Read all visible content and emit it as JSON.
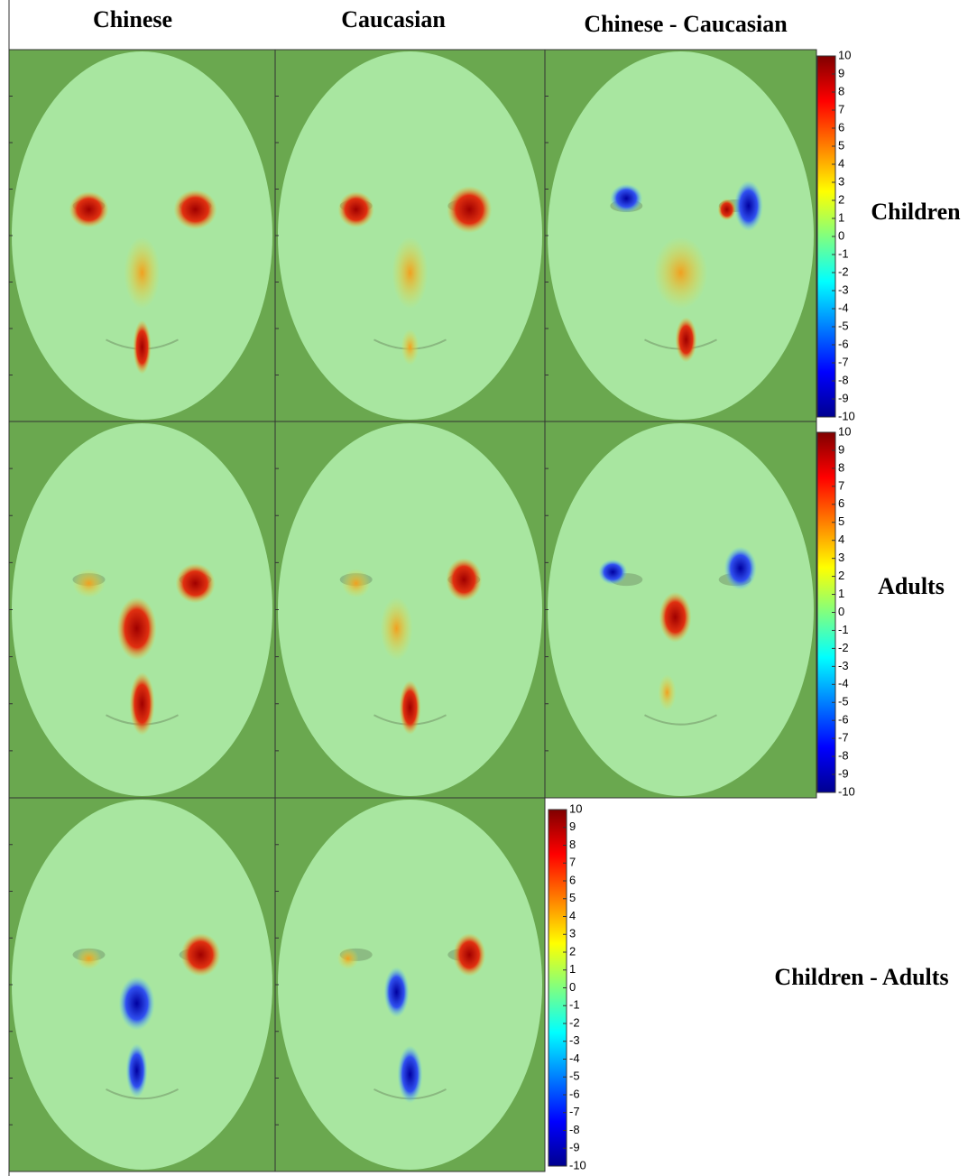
{
  "columns": [
    "Chinese",
    "Caucasian",
    "Chinese - Caucasian"
  ],
  "rows": [
    "Children",
    "Adults",
    "Children - Adults"
  ],
  "colorbar": {
    "lim": [
      -10,
      10
    ],
    "ticks": [
      10,
      9,
      8,
      7,
      6,
      5,
      4,
      3,
      2,
      1,
      0,
      -1,
      -2,
      -3,
      -4,
      -5,
      -6,
      -7,
      -8,
      -9,
      -10
    ]
  }
}
